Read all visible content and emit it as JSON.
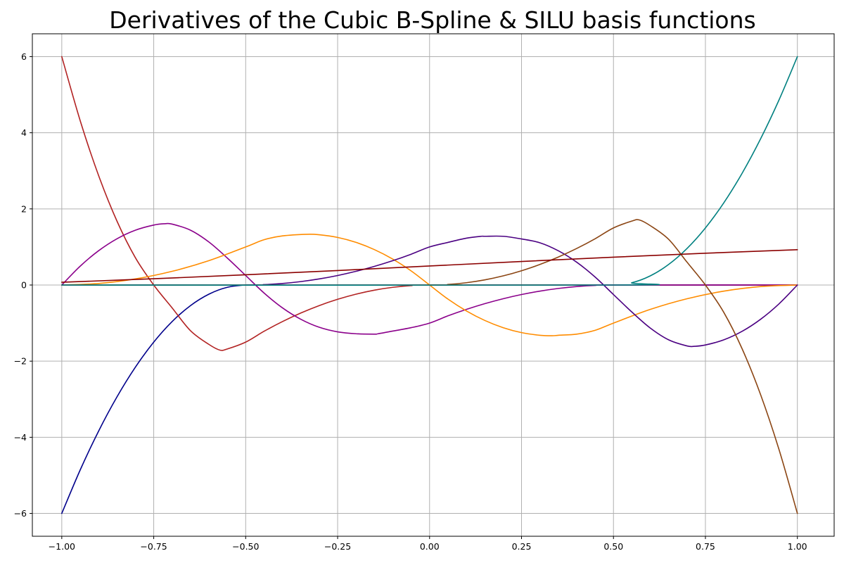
{
  "chart_data": {
    "type": "line",
    "title": "Derivatives of the Cubic B-Spline & SILU basis functions",
    "xlabel": "",
    "ylabel": "",
    "xlim": [
      -1.08,
      1.1
    ],
    "ylim": [
      -6.6,
      6.6
    ],
    "x_ticks": [
      -1.0,
      -0.75,
      -0.5,
      -0.25,
      0.0,
      0.25,
      0.5,
      0.75,
      1.0
    ],
    "x_tick_labels": [
      "−1.00",
      "−0.75",
      "−0.50",
      "−0.25",
      "0.00",
      "0.25",
      "0.50",
      "0.75",
      "1.00"
    ],
    "y_ticks": [
      -6,
      -4,
      -2,
      0,
      2,
      4,
      6
    ],
    "y_tick_labels": [
      "−6",
      "−4",
      "−2",
      "0",
      "2",
      "4",
      "6"
    ],
    "grid": true,
    "legend": "none",
    "series": [
      {
        "color": "#00008b",
        "x": [
          -1.0,
          -0.95,
          -0.9,
          -0.85,
          -0.8,
          -0.75,
          -0.7,
          -0.65,
          -0.6,
          -0.55,
          -0.5,
          -0.45,
          -0.4,
          -0.2,
          0.0,
          0.5,
          1.0
        ],
        "y": [
          -6.0,
          -4.86,
          -3.84,
          -2.94,
          -2.16,
          -1.5,
          -0.96,
          -0.54,
          -0.24,
          -0.06,
          0.0,
          0.0,
          0.0,
          0.0,
          0.0,
          0.0,
          0.0
        ]
      },
      {
        "color": "#b22222",
        "x": [
          -1.0,
          -0.95,
          -0.9,
          -0.85,
          -0.8,
          -0.75,
          -0.7,
          -0.65,
          -0.6,
          -0.57,
          -0.55,
          -0.5,
          -0.45,
          -0.4,
          -0.35,
          -0.3,
          -0.25,
          -0.2,
          -0.15,
          -0.1,
          -0.05,
          0.0,
          0.5,
          1.0
        ],
        "y": [
          6.0,
          4.32,
          2.88,
          1.68,
          0.72,
          0.0,
          -0.6,
          -1.2,
          -1.56,
          -1.71,
          -1.68,
          -1.5,
          -1.215,
          -0.96,
          -0.735,
          -0.54,
          -0.375,
          -0.24,
          -0.135,
          -0.06,
          -0.015,
          0.0,
          0.0,
          0.0
        ]
      },
      {
        "color": "#8b008b",
        "x": [
          -1.0,
          -0.95,
          -0.9,
          -0.85,
          -0.8,
          -0.75,
          -0.72,
          -0.7,
          -0.65,
          -0.6,
          -0.55,
          -0.5,
          -0.45,
          -0.4,
          -0.35,
          -0.3,
          -0.25,
          -0.2,
          -0.15,
          -0.14,
          -0.1,
          -0.05,
          0.0,
          0.05,
          0.1,
          0.15,
          0.2,
          0.25,
          0.3,
          0.35,
          0.4,
          0.45,
          0.5,
          1.0
        ],
        "y": [
          0.0,
          0.495,
          0.9,
          1.215,
          1.44,
          1.575,
          1.61,
          1.6,
          1.44,
          1.13,
          0.71,
          0.25,
          -0.21,
          -0.6,
          -0.9,
          -1.11,
          -1.23,
          -1.28,
          -1.29,
          -1.28,
          -1.21,
          -1.12,
          -1.0,
          -0.81,
          -0.64,
          -0.49,
          -0.36,
          -0.25,
          -0.16,
          -0.09,
          -0.04,
          -0.01,
          0.0,
          0.0
        ]
      },
      {
        "color": "#ff8c00",
        "x": [
          -1.0,
          -0.9,
          -0.8,
          -0.7,
          -0.6,
          -0.5,
          -0.45,
          -0.4,
          -0.333,
          -0.3,
          -0.25,
          -0.2,
          -0.15,
          -0.1,
          -0.05,
          0.0,
          0.05,
          0.1,
          0.15,
          0.2,
          0.25,
          0.3,
          0.333,
          0.35,
          0.4,
          0.45,
          0.5,
          0.6,
          0.7,
          0.8,
          0.9,
          1.0
        ],
        "y": [
          0.0,
          0.04,
          0.16,
          0.36,
          0.64,
          1.0,
          1.19,
          1.29,
          1.333,
          1.32,
          1.25,
          1.12,
          0.93,
          0.68,
          0.37,
          0.0,
          -0.37,
          -0.68,
          -0.93,
          -1.12,
          -1.25,
          -1.32,
          -1.333,
          -1.32,
          -1.29,
          -1.19,
          -1.0,
          -0.64,
          -0.36,
          -0.16,
          -0.04,
          0.0
        ]
      },
      {
        "color": "#4b0082",
        "x": [
          -1.0,
          -0.5,
          -0.45,
          -0.4,
          -0.35,
          -0.3,
          -0.25,
          -0.2,
          -0.15,
          -0.1,
          -0.05,
          0.0,
          0.05,
          0.1,
          0.14,
          0.15,
          0.2,
          0.25,
          0.3,
          0.35,
          0.4,
          0.45,
          0.5,
          0.55,
          0.6,
          0.65,
          0.7,
          0.72,
          0.75,
          0.8,
          0.85,
          0.9,
          0.95,
          1.0
        ],
        "y": [
          0.0,
          0.0,
          0.01,
          0.04,
          0.09,
          0.16,
          0.25,
          0.36,
          0.49,
          0.64,
          0.81,
          1.0,
          1.12,
          1.23,
          1.28,
          1.28,
          1.28,
          1.21,
          1.11,
          0.9,
          0.6,
          0.21,
          -0.25,
          -0.71,
          -1.13,
          -1.44,
          -1.6,
          -1.61,
          -1.575,
          -1.44,
          -1.215,
          -0.9,
          -0.495,
          0.0
        ]
      },
      {
        "color": "#8b4513",
        "x": [
          -1.0,
          0.0,
          0.05,
          0.1,
          0.15,
          0.2,
          0.25,
          0.3,
          0.35,
          0.4,
          0.45,
          0.5,
          0.55,
          0.57,
          0.6,
          0.65,
          0.7,
          0.75,
          0.8,
          0.85,
          0.9,
          0.95,
          1.0
        ],
        "y": [
          0.0,
          0.0,
          0.015,
          0.06,
          0.135,
          0.24,
          0.375,
          0.54,
          0.735,
          0.96,
          1.215,
          1.5,
          1.68,
          1.71,
          1.56,
          1.2,
          0.6,
          0.0,
          -0.72,
          -1.68,
          -2.88,
          -4.32,
          -6.0
        ]
      },
      {
        "color": "#008080",
        "x": [
          -1.0,
          0.5,
          0.55,
          0.6,
          0.65,
          0.7,
          0.75,
          0.8,
          0.85,
          0.9,
          0.95,
          1.0
        ],
        "y": [
          0.0,
          0.0,
          0.06,
          0.24,
          0.54,
          0.96,
          1.5,
          2.16,
          2.94,
          3.84,
          4.86,
          6.0
        ]
      },
      {
        "color": "#8b0000",
        "x": [
          -1.0,
          -0.75,
          -0.5,
          -0.25,
          0.0,
          0.25,
          0.5,
          0.75,
          1.0
        ],
        "y": [
          0.072,
          0.165,
          0.269,
          0.381,
          0.5,
          0.619,
          0.731,
          0.835,
          0.928
        ]
      }
    ]
  }
}
